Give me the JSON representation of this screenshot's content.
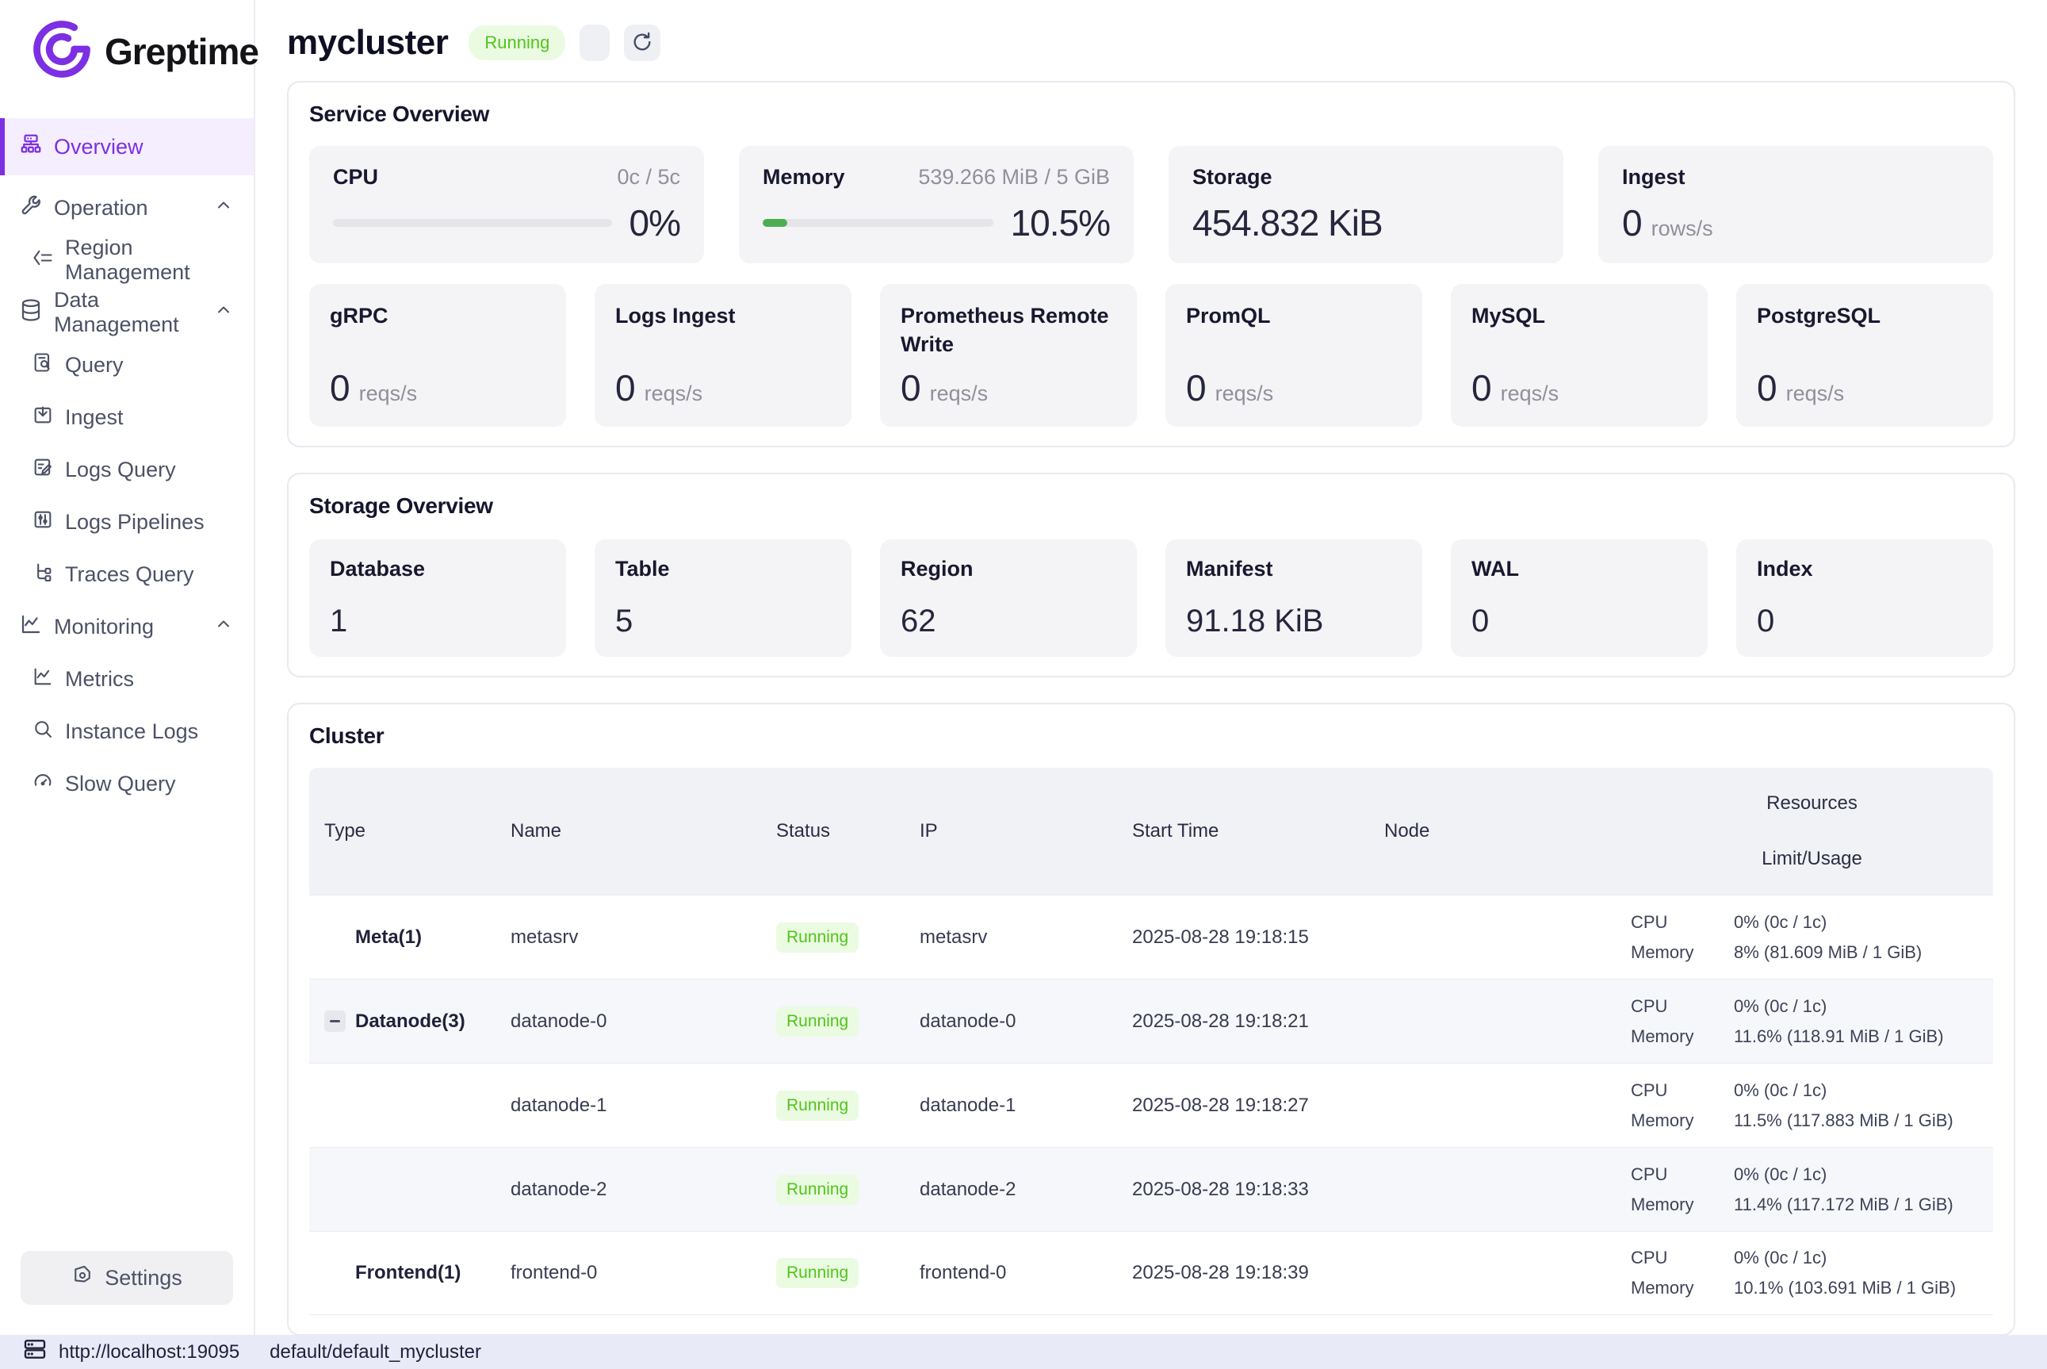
{
  "colors": {
    "accent_purple": "#7c2fe3",
    "success_green": "#52c41a",
    "progress_green": "#4cae50"
  },
  "brand": {
    "name": "Greptime"
  },
  "sidebar": {
    "overview": "Overview",
    "operation": "Operation",
    "region_management": "Region Management",
    "data_management": "Data Management",
    "query": "Query",
    "ingest": "Ingest",
    "logs_query": "Logs Query",
    "logs_pipelines": "Logs Pipelines",
    "traces_query": "Traces Query",
    "monitoring": "Monitoring",
    "metrics": "Metrics",
    "instance_logs": "Instance Logs",
    "slow_query": "Slow Query",
    "settings": "Settings"
  },
  "header": {
    "title": "mycluster",
    "status": "Running"
  },
  "service_overview": {
    "title": "Service Overview",
    "cpu": {
      "label": "CPU",
      "detail": "0c / 5c",
      "percent": "0%",
      "progress": 0
    },
    "memory": {
      "label": "Memory",
      "detail": "539.266 MiB / 5 GiB",
      "percent": "10.5%",
      "progress": 10.5
    },
    "storage": {
      "label": "Storage",
      "value": "454.832 KiB"
    },
    "ingest": {
      "label": "Ingest",
      "value": "0",
      "unit": "rows/s"
    },
    "rates": [
      {
        "label": "gRPC",
        "value": "0",
        "unit": "reqs/s"
      },
      {
        "label": "Logs Ingest",
        "value": "0",
        "unit": "reqs/s"
      },
      {
        "label": "Prometheus Remote Write",
        "value": "0",
        "unit": "reqs/s"
      },
      {
        "label": "PromQL",
        "value": "0",
        "unit": "reqs/s"
      },
      {
        "label": "MySQL",
        "value": "0",
        "unit": "reqs/s"
      },
      {
        "label": "PostgreSQL",
        "value": "0",
        "unit": "reqs/s"
      }
    ]
  },
  "storage_overview": {
    "title": "Storage Overview",
    "cards": [
      {
        "label": "Database",
        "value": "1"
      },
      {
        "label": "Table",
        "value": "5"
      },
      {
        "label": "Region",
        "value": "62"
      },
      {
        "label": "Manifest",
        "value": "91.18 KiB"
      },
      {
        "label": "WAL",
        "value": "0"
      },
      {
        "label": "Index",
        "value": "0"
      }
    ]
  },
  "cluster": {
    "title": "Cluster",
    "columns": {
      "type": "Type",
      "name": "Name",
      "status": "Status",
      "ip": "IP",
      "start_time": "Start Time",
      "node": "Node",
      "resources": "Resources",
      "limit_usage": "Limit/Usage"
    },
    "res_labels": {
      "cpu": "CPU",
      "memory": "Memory"
    },
    "rows": [
      {
        "type": "Meta(1)",
        "name": "metasrv",
        "status": "Running",
        "ip": "metasrv",
        "start": "2025-08-28 19:18:15",
        "node": "",
        "cpu": "0% (0c / 1c)",
        "memory": "8% (81.609 MiB / 1 GiB)"
      },
      {
        "type": "Datanode(3)",
        "name": "datanode-0",
        "status": "Running",
        "ip": "datanode-0",
        "start": "2025-08-28 19:18:21",
        "node": "",
        "cpu": "0% (0c / 1c)",
        "memory": "11.6% (118.91 MiB / 1 GiB)"
      },
      {
        "type": "",
        "name": "datanode-1",
        "status": "Running",
        "ip": "datanode-1",
        "start": "2025-08-28 19:18:27",
        "node": "",
        "cpu": "0% (0c / 1c)",
        "memory": "11.5% (117.883 MiB / 1 GiB)"
      },
      {
        "type": "",
        "name": "datanode-2",
        "status": "Running",
        "ip": "datanode-2",
        "start": "2025-08-28 19:18:33",
        "node": "",
        "cpu": "0% (0c / 1c)",
        "memory": "11.4% (117.172 MiB / 1 GiB)"
      },
      {
        "type": "Frontend(1)",
        "name": "frontend-0",
        "status": "Running",
        "ip": "frontend-0",
        "start": "2025-08-28 19:18:39",
        "node": "",
        "cpu": "0% (0c / 1c)",
        "memory": "10.1% (103.691 MiB / 1 GiB)"
      }
    ]
  },
  "statusbar": {
    "url": "http://localhost:19095",
    "database": "default/default_mycluster"
  }
}
